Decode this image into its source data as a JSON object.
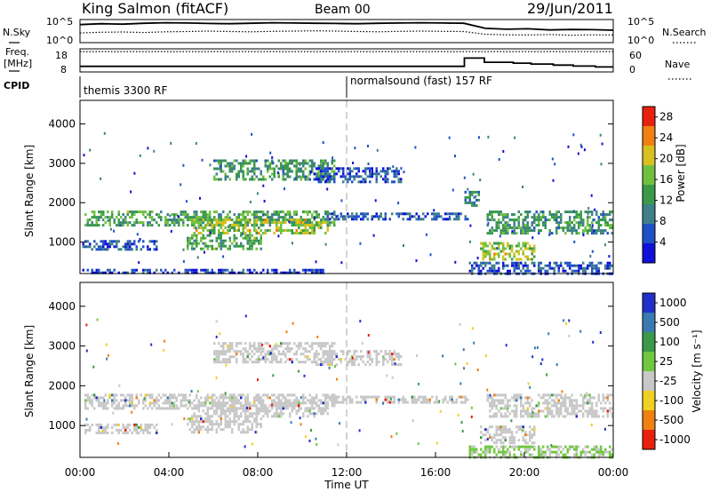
{
  "header": {
    "station": "King Salmon (fitACF)",
    "beam": "Beam 00",
    "date": "29/Jun/2011"
  },
  "noise_panel": {
    "left_label": "N.Sky",
    "left_ticks": [
      "10^5",
      "10^0"
    ],
    "right_label": "N.Search",
    "right_ticks": [
      "10^5",
      "10^0"
    ],
    "sky_levels": [
      0.78,
      0.82,
      0.8,
      0.84,
      0.86,
      0.85,
      0.83,
      0.82,
      0.84,
      0.86,
      0.85,
      0.84,
      0.83,
      0.82,
      0.84,
      0.85,
      0.86,
      0.85,
      0.84,
      0.62,
      0.58,
      0.6,
      0.55,
      0.57,
      0.56,
      0.54
    ],
    "search_levels": [
      0.42,
      0.45,
      0.46,
      0.44,
      0.47,
      0.48,
      0.5,
      0.48,
      0.47,
      0.49,
      0.5,
      0.51,
      0.5,
      0.48,
      0.47,
      0.49,
      0.5,
      0.49,
      0.48,
      0.36,
      0.34,
      0.33,
      0.35,
      0.32,
      0.34,
      0.33
    ]
  },
  "freq_panel": {
    "left_label_1": "Freq.",
    "left_label_2": "[MHz]",
    "left_ticks": [
      "18",
      "8"
    ],
    "right_label": "Nave",
    "right_ticks": [
      "60",
      "0"
    ],
    "freq_levels": [
      0.12,
      0.12,
      0.12,
      0.12,
      0.12,
      0.12,
      0.12,
      0.12,
      0.12,
      0.12,
      0.12,
      0.12,
      0.12,
      0.12,
      0.12,
      0.12,
      0.12,
      0.12,
      0.12,
      0.12,
      0.12,
      0.12,
      0.12,
      0.12,
      0.12,
      0.12
    ],
    "nave_steps": [
      [
        0,
        0.3
      ],
      [
        17.3,
        0.95
      ],
      [
        18.2,
        0.62
      ],
      [
        19.5,
        0.55
      ],
      [
        20.3,
        0.48
      ],
      [
        21.3,
        0.4
      ],
      [
        22.2,
        0.32
      ],
      [
        23.2,
        0.25
      ],
      [
        24,
        0.25
      ]
    ]
  },
  "cpid": {
    "label": "CPID",
    "programs": [
      {
        "name": "themis 3300 RF",
        "start_hour": 0
      },
      {
        "name": "normalsound (fast) 157 RF",
        "start_hour": 12
      }
    ]
  },
  "chart_data": [
    {
      "type": "heatmap",
      "title": "",
      "xlabel": "",
      "ylabel": "Slant Range [km]",
      "xlim": [
        0,
        24
      ],
      "ylim": [
        200,
        4600
      ],
      "yticks": [
        1000,
        2000,
        3000,
        4000
      ],
      "colorbar": {
        "label": "Power [dB]",
        "ticks": [
          4,
          8,
          12,
          16,
          20,
          24,
          28
        ],
        "range": [
          0,
          30
        ],
        "colors": [
          "#1010d8",
          "#2050c8",
          "#3e7f8a",
          "#3a9a4a",
          "#70c040",
          "#d8c020",
          "#f08010",
          "#e82010"
        ]
      },
      "scatter_regions": [
        {
          "t0": 0.2,
          "t1": 11.5,
          "r0": 1450,
          "r1": 1800,
          "value": 14
        },
        {
          "t0": 5.0,
          "t1": 11.2,
          "r0": 1200,
          "r1": 1600,
          "value": 18
        },
        {
          "t0": 4.8,
          "t1": 8.2,
          "r0": 800,
          "r1": 1200,
          "value": 14
        },
        {
          "t0": 0.1,
          "t1": 3.5,
          "r0": 800,
          "r1": 1050,
          "value": 6
        },
        {
          "t0": 11.0,
          "t1": 17.5,
          "r0": 1550,
          "r1": 1750,
          "value": 6
        },
        {
          "t0": 6.0,
          "t1": 11.5,
          "r0": 2600,
          "r1": 3100,
          "value": 12
        },
        {
          "t0": 10.5,
          "t1": 14.5,
          "r0": 2500,
          "r1": 2900,
          "value": 6
        },
        {
          "t0": 17.3,
          "t1": 18.0,
          "r0": 1900,
          "r1": 2300,
          "value": 10
        },
        {
          "t0": 18.3,
          "t1": 24.0,
          "r0": 1200,
          "r1": 1800,
          "value": 12
        },
        {
          "t0": 18.0,
          "t1": 20.5,
          "r0": 550,
          "r1": 1000,
          "value": 18
        },
        {
          "t0": 17.5,
          "t1": 24.0,
          "r0": 200,
          "r1": 500,
          "value": 6
        },
        {
          "t0": 0.0,
          "t1": 11.0,
          "r0": 200,
          "r1": 320,
          "value": 4
        }
      ]
    },
    {
      "type": "heatmap",
      "title": "",
      "xlabel": "Time UT",
      "ylabel": "Slant Range [km]",
      "xlim": [
        0,
        24
      ],
      "ylim": [
        200,
        4600
      ],
      "xticks": [
        "00:00",
        "04:00",
        "08:00",
        "12:00",
        "16:00",
        "20:00",
        "00:00"
      ],
      "yticks": [
        1000,
        2000,
        3000,
        4000
      ],
      "colorbar": {
        "label": "Velocity [m s⁻¹]",
        "ticks": [
          "1000",
          "500",
          "100",
          "25",
          "-25",
          "-100",
          "-500",
          "-1000"
        ],
        "colors": [
          "#2030c8",
          "#3a7ab0",
          "#3a9a4a",
          "#70c840",
          "#c8c8c8",
          "#f0d020",
          "#f08010",
          "#e82010"
        ]
      },
      "ground_scatter_color": "#c8c8c8",
      "scatter_regions": [
        {
          "t0": 0.2,
          "t1": 11.5,
          "r0": 1450,
          "r1": 1800,
          "value": 0
        },
        {
          "t0": 5.0,
          "t1": 11.2,
          "r0": 1200,
          "r1": 1600,
          "value": 0
        },
        {
          "t0": 4.8,
          "t1": 8.2,
          "r0": 800,
          "r1": 1200,
          "value": 0
        },
        {
          "t0": 0.1,
          "t1": 3.5,
          "r0": 800,
          "r1": 1050,
          "value": 0
        },
        {
          "t0": 11.0,
          "t1": 17.5,
          "r0": 1550,
          "r1": 1750,
          "value": 0
        },
        {
          "t0": 6.0,
          "t1": 11.5,
          "r0": 2600,
          "r1": 3100,
          "value": 0
        },
        {
          "t0": 10.5,
          "t1": 14.5,
          "r0": 2500,
          "r1": 2900,
          "value": 0
        },
        {
          "t0": 18.3,
          "t1": 24.0,
          "r0": 1200,
          "r1": 1800,
          "value": 0
        },
        {
          "t0": 18.0,
          "t1": 20.5,
          "r0": 550,
          "r1": 1000,
          "value": 0
        },
        {
          "t0": 17.5,
          "t1": 24.0,
          "r0": 200,
          "r1": 500,
          "value": 60
        }
      ]
    }
  ]
}
